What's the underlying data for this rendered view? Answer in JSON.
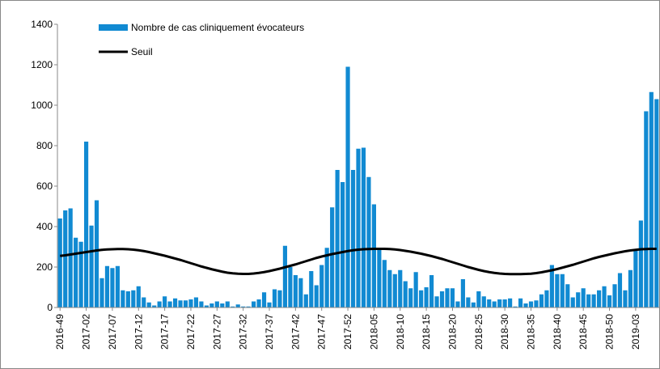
{
  "chart_data": {
    "type": "bar_line",
    "categories": [
      "2016-49",
      null,
      null,
      null,
      null,
      "2017-02",
      null,
      null,
      null,
      null,
      "2017-07",
      null,
      null,
      null,
      null,
      "2017-12",
      null,
      null,
      null,
      null,
      "2017-17",
      null,
      null,
      null,
      null,
      "2017-22",
      null,
      null,
      null,
      null,
      "2017-27",
      null,
      null,
      null,
      null,
      "2017-32",
      null,
      null,
      null,
      null,
      "2017-37",
      null,
      null,
      null,
      null,
      "2017-42",
      null,
      null,
      null,
      null,
      "2017-47",
      null,
      null,
      null,
      null,
      "2017-52",
      null,
      null,
      null,
      null,
      "2018-05",
      null,
      null,
      null,
      null,
      "2018-10",
      null,
      null,
      null,
      null,
      "2018-15",
      null,
      null,
      null,
      null,
      "2018-20",
      null,
      null,
      null,
      null,
      "2018-25",
      null,
      null,
      null,
      null,
      "2018-30",
      null,
      null,
      null,
      null,
      "2018-35",
      null,
      null,
      null,
      null,
      "2018-40",
      null,
      null,
      null,
      null,
      "2018-45",
      null,
      null,
      null,
      null,
      "2018-50",
      null,
      null,
      null,
      null,
      "2019-03",
      null,
      null,
      null,
      null
    ],
    "series": [
      {
        "name": "Nombre de cas cliniquement évocateurs",
        "type": "bar",
        "color": "#118ad2",
        "values": [
          440,
          480,
          490,
          345,
          325,
          820,
          405,
          530,
          145,
          205,
          195,
          205,
          85,
          80,
          85,
          105,
          50,
          25,
          10,
          30,
          55,
          30,
          45,
          35,
          35,
          40,
          50,
          30,
          10,
          20,
          30,
          20,
          30,
          5,
          15,
          5,
          5,
          30,
          40,
          75,
          25,
          90,
          85,
          305,
          200,
          160,
          145,
          65,
          180,
          110,
          210,
          295,
          495,
          680,
          620,
          1190,
          680,
          785,
          790,
          645,
          510,
          285,
          235,
          185,
          165,
          185,
          130,
          95,
          175,
          85,
          100,
          160,
          55,
          80,
          95,
          95,
          30,
          140,
          50,
          25,
          80,
          55,
          40,
          30,
          40,
          40,
          45,
          5,
          45,
          20,
          30,
          35,
          65,
          85,
          210,
          165,
          165,
          115,
          50,
          75,
          95,
          65,
          65,
          85,
          105,
          60,
          115,
          170,
          85,
          185,
          280,
          430,
          970,
          1065,
          1030
        ]
      },
      {
        "name": "Seuil",
        "type": "line",
        "color": "#000000",
        "values": [
          255,
          258,
          262,
          266,
          270,
          274,
          278,
          282,
          285,
          287,
          288,
          289,
          289,
          288,
          286,
          283,
          279,
          274,
          268,
          262,
          256,
          249,
          242,
          235,
          227,
          219,
          211,
          203,
          196,
          189,
          183,
          177,
          172,
          169,
          167,
          166,
          166,
          168,
          171,
          175,
          180,
          186,
          192,
          199,
          206,
          213,
          221,
          229,
          237,
          245,
          252,
          258,
          264,
          269,
          274,
          279,
          283,
          286,
          288,
          289,
          290,
          290,
          290,
          289,
          287,
          284,
          280,
          276,
          271,
          266,
          260,
          254,
          247,
          240,
          232,
          224,
          216,
          208,
          200,
          193,
          186,
          180,
          175,
          171,
          168,
          166,
          165,
          165,
          165,
          166,
          167,
          170,
          174,
          179,
          184,
          190,
          197,
          204,
          211,
          219,
          227,
          235,
          243,
          250,
          256,
          262,
          268,
          273,
          278,
          282,
          285,
          288,
          289,
          290,
          290
        ]
      }
    ],
    "ylim": [
      0,
      1400
    ],
    "yticks": [
      0,
      200,
      400,
      600,
      800,
      1000,
      1200,
      1400
    ]
  }
}
